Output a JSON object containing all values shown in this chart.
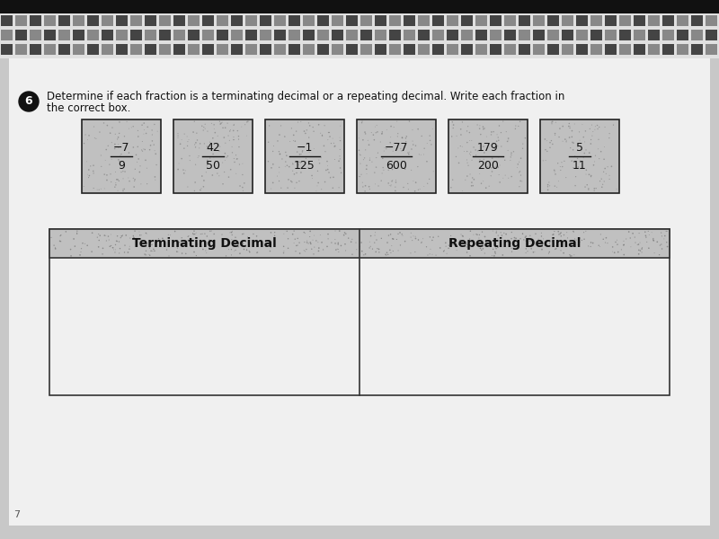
{
  "background_color": "#c8c8c8",
  "page_color": "#f0f0f0",
  "question_number": "6",
  "instruction_line1": "Determine if each fraction is a terminating decimal or a repeating decimal. Write each fraction in",
  "instruction_line2": "the correct box.",
  "fractions": [
    {
      "numerator": "−7",
      "denominator": "9"
    },
    {
      "numerator": "42",
      "denominator": "50"
    },
    {
      "numerator": "−1",
      "denominator": "125"
    },
    {
      "numerator": "−77",
      "denominator": "600"
    },
    {
      "numerator": "179",
      "denominator": "200"
    },
    {
      "numerator": "5",
      "denominator": "11"
    }
  ],
  "col1_header": "Terminating Decimal",
  "col2_header": "Repeating Decimal",
  "strip_color": "#555555",
  "strip_dash_dark": "#333333",
  "strip_dash_light": "#aaaaaa",
  "box_fill": "#c8c8c8",
  "box_edge": "#222222",
  "table_header_fill": "#bbbbbb",
  "table_body_fill": "#f0f0f0",
  "table_edge": "#333333"
}
